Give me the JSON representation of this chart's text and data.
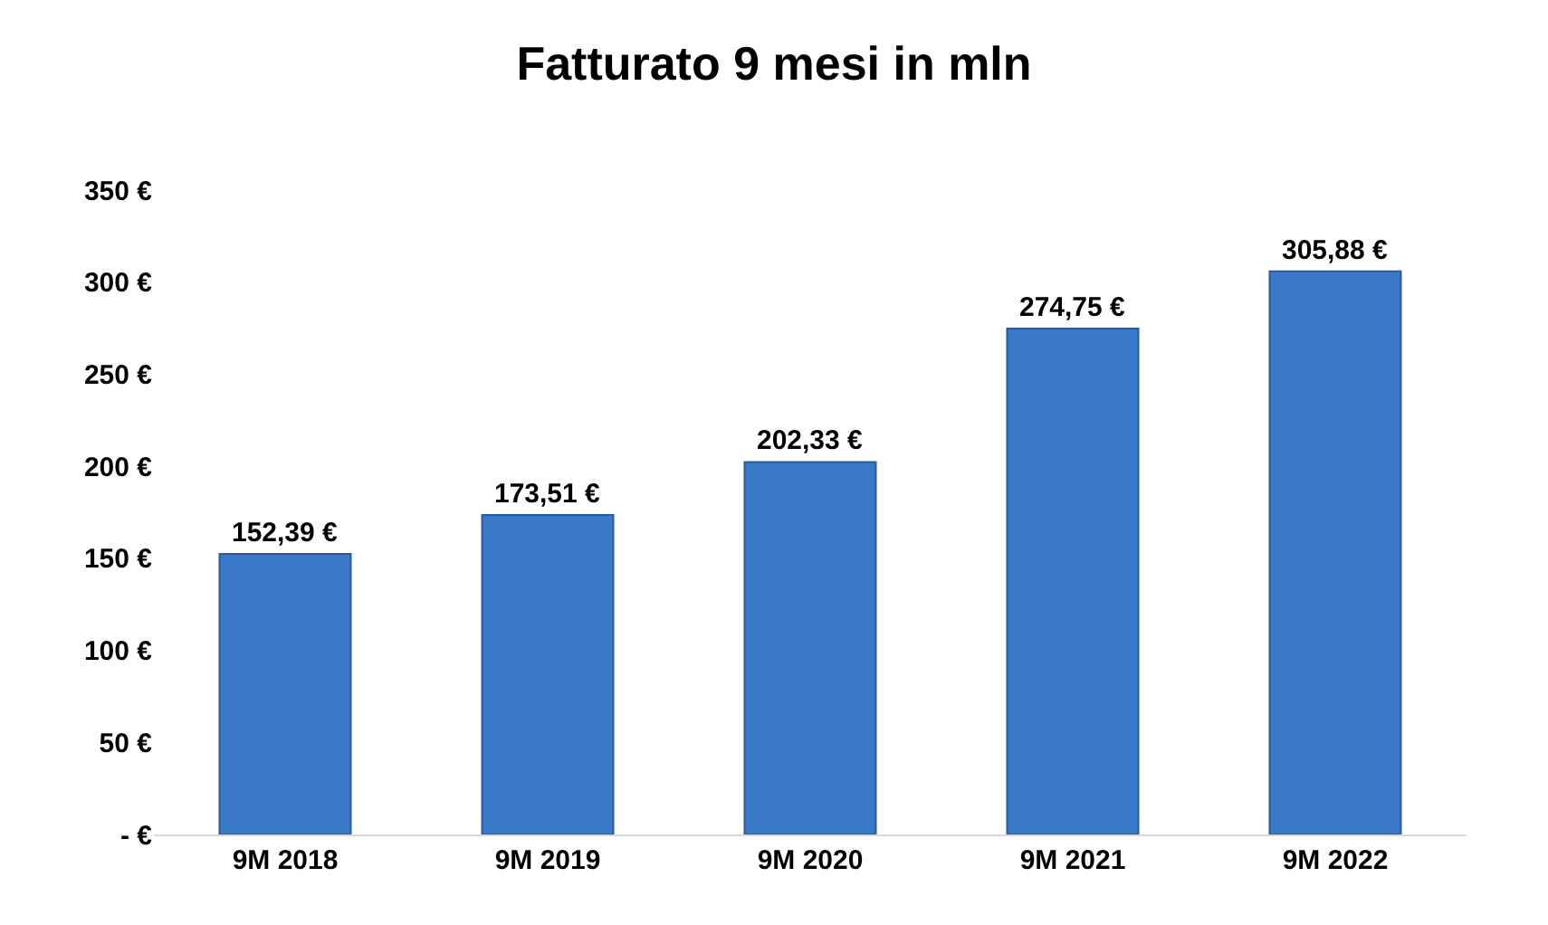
{
  "chart_data": {
    "type": "bar",
    "title": "Fatturato 9 mesi in mln",
    "categories": [
      "9M 2018",
      "9M 2019",
      "9M 2020",
      "9M 2021",
      "9M 2022"
    ],
    "values": [
      152.39,
      173.51,
      202.33,
      274.75,
      305.88
    ],
    "value_labels": [
      "152,39 €",
      "173,51 €",
      "202,33 €",
      "274,75 €",
      "305,88 €"
    ],
    "color": "#3a78c8",
    "ylim": [
      0,
      350
    ],
    "yticks": [
      {
        "value": 0,
        "label": "- €"
      },
      {
        "value": 50,
        "label": "50 €"
      },
      {
        "value": 100,
        "label": "100 €"
      },
      {
        "value": 150,
        "label": "150 €"
      },
      {
        "value": 200,
        "label": "200 €"
      },
      {
        "value": 250,
        "label": "250 €"
      },
      {
        "value": 300,
        "label": "300 €"
      },
      {
        "value": 350,
        "label": "350 €"
      }
    ]
  }
}
